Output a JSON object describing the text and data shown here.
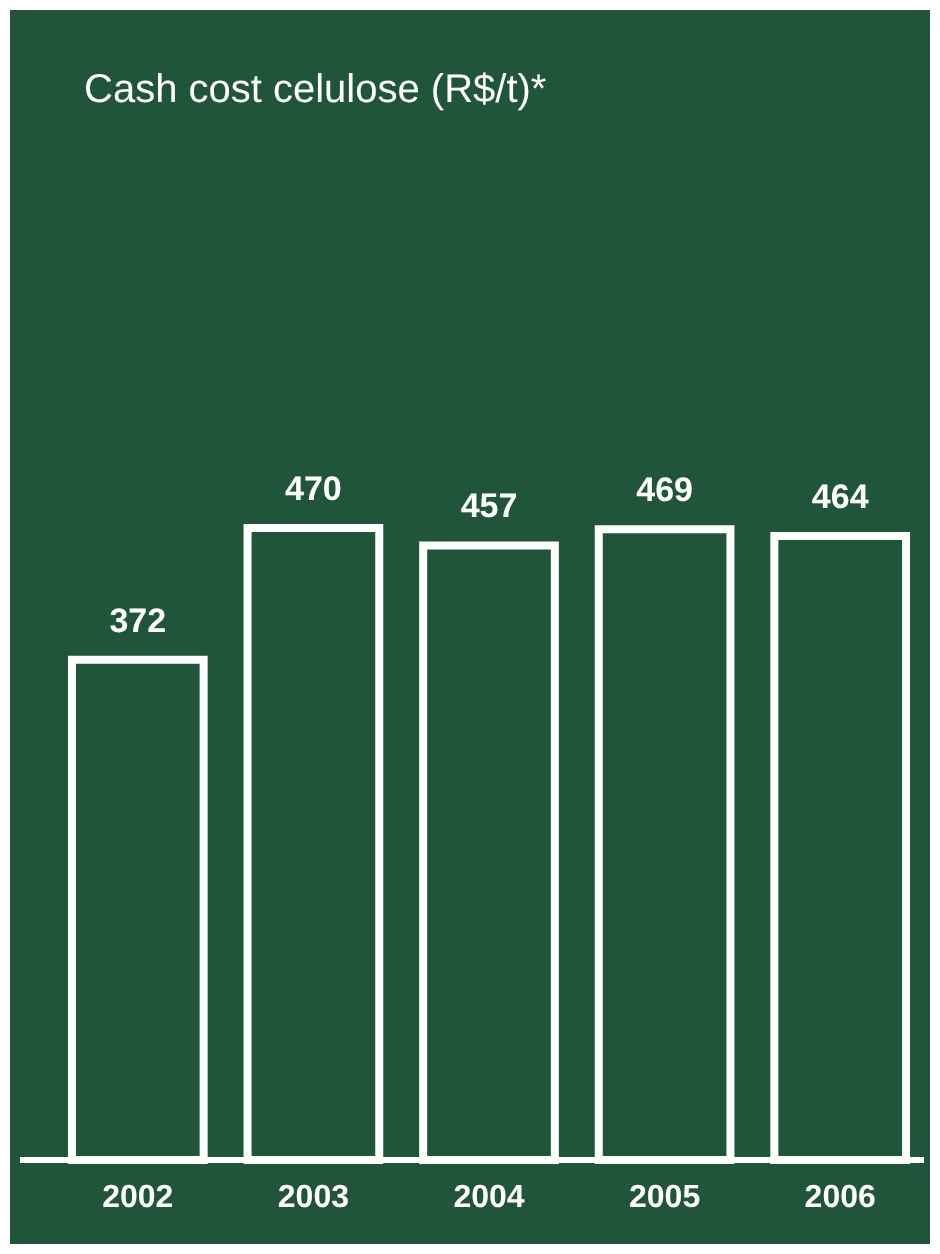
{
  "chart_data": {
    "type": "bar",
    "title": "Cash cost celulose (R$/t)*",
    "categories": [
      "2002",
      "2003",
      "2004",
      "2005",
      "2006"
    ],
    "values": [
      372,
      470,
      457,
      469,
      464
    ],
    "color": "#ffffff",
    "data_labels": true
  }
}
